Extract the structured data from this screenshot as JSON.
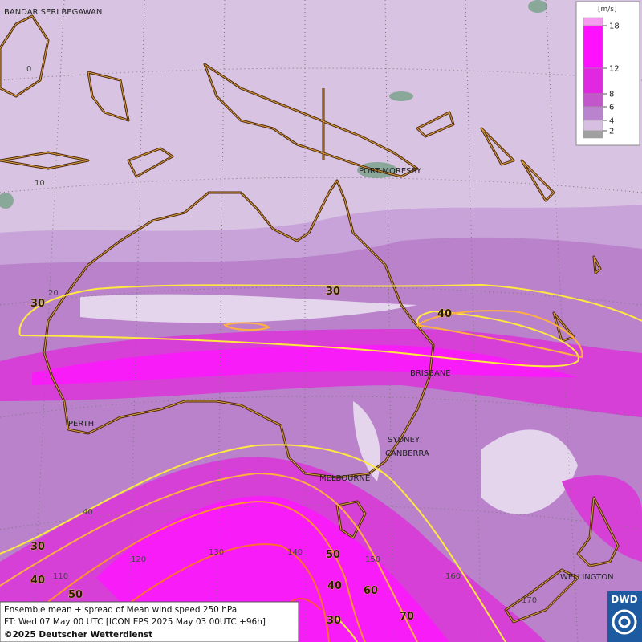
{
  "cities": [
    "BANDAR SERI BEGAWAN",
    "PORT MORESBY",
    "BRISBANE",
    "PERTH",
    "SYDNEY",
    "CANBERRA",
    "MELBOURNE",
    "WELLINGTON"
  ],
  "lat_labels": [
    "0",
    "10",
    "20",
    "40"
  ],
  "lon_labels": [
    "110",
    "120",
    "130",
    "140",
    "150",
    "160",
    "170"
  ],
  "contour_labels": [
    "30",
    "30",
    "40",
    "30",
    "40",
    "50",
    "50",
    "40",
    "60",
    "70",
    "30"
  ],
  "legend": {
    "unit": "[m/s]",
    "ticks": [
      18,
      12,
      8,
      6,
      4,
      2
    ],
    "colors": [
      "#f59cf0",
      "#ff10ff",
      "#e028e0",
      "#c456cc",
      "#b984cd",
      "#d6bfe0",
      "#a0a0a0"
    ]
  },
  "caption": [
    "Ensemble mean + spread of Mean wind speed 250 hPa",
    "FT: Wed 07 May 00 UTC [ICON EPS 2025 May 03 00UTC +96h]",
    "©2025 Deutscher Wetterdienst"
  ],
  "logo": "DWD"
}
